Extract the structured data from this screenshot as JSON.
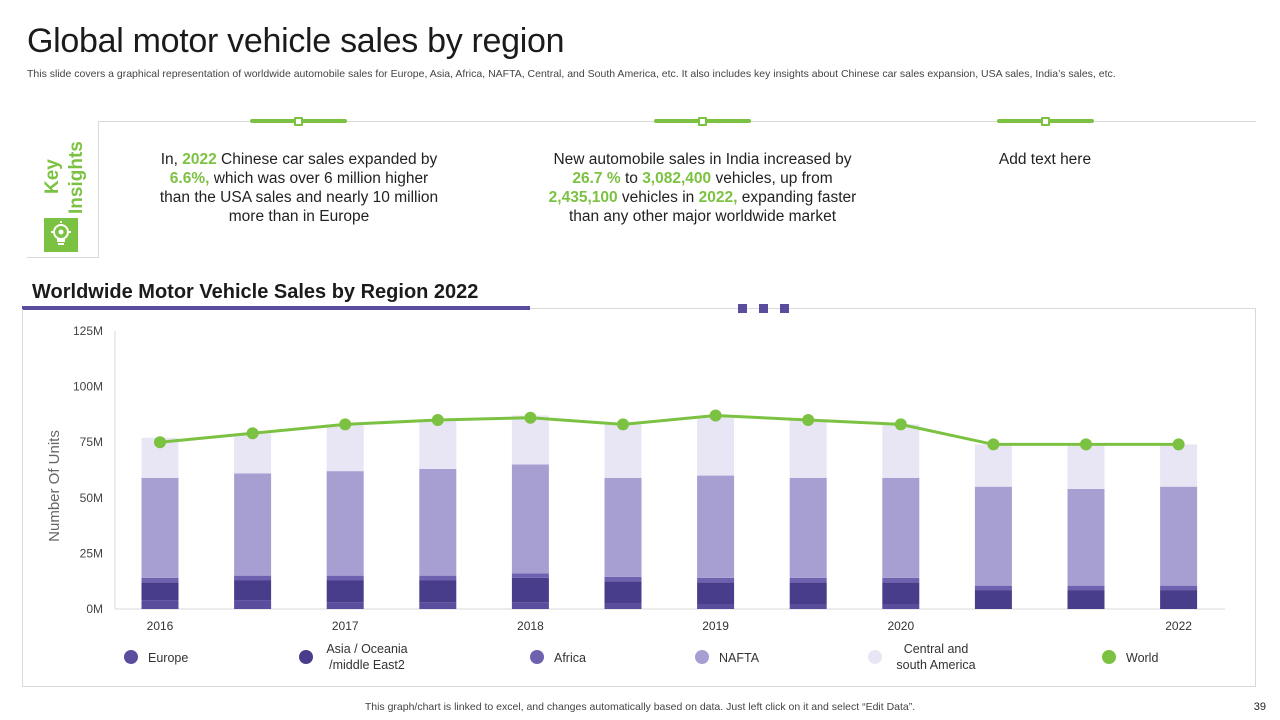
{
  "slide": {
    "title": "Global motor vehicle sales by region",
    "subtitle": "This slide covers a graphical representation of worldwide automobile sales for Europe, Asia, Africa, NAFTA,  Central, and South America, etc. It also includes key insights about Chinese car sales expansion, USA sales, India’s sales, etc.",
    "footnote": "This graph/chart is linked to excel,  and changes automatically based on data. Just left click on it and select “Edit Data”.",
    "page_number": "39"
  },
  "insights": {
    "label_line1": "Key",
    "label_line2": "Insights",
    "icon": "lightbulb-gear-icon",
    "items": [
      {
        "parts": [
          {
            "t": "In, ",
            "g": false
          },
          {
            "t": "2022",
            "g": true
          },
          {
            "t": " Chinese car sales expanded by ",
            "g": false
          },
          {
            "t": "6.6%,",
            "g": true
          },
          {
            "t": " which was over 6 million higher than the USA sales and nearly 10 million more than in Europe",
            "g": false
          }
        ]
      },
      {
        "parts": [
          {
            "t": "New automobile sales in India increased by ",
            "g": false
          },
          {
            "t": "26.7 %",
            "g": true
          },
          {
            "t": " to ",
            "g": false
          },
          {
            "t": "3,082,400",
            "g": true
          },
          {
            "t": " vehicles,  up from ",
            "g": false
          },
          {
            "t": "2,435,100",
            "g": true
          },
          {
            "t": " vehicles in ",
            "g": false
          },
          {
            "t": "2022,",
            "g": true
          },
          {
            "t": " expanding faster than any other major worldwide market",
            "g": false
          }
        ]
      },
      {
        "parts": [
          {
            "t": "Add text here",
            "g": false
          }
        ]
      }
    ]
  },
  "chart_data": {
    "type": "bar",
    "title": "Worldwide Motor Vehicle Sales by Region 2022",
    "ylabel": "Number Of Units",
    "ylim": [
      0,
      125
    ],
    "yticks": [
      0,
      25,
      50,
      75,
      100,
      125
    ],
    "ytick_labels": [
      "0M",
      "25M",
      "50M",
      "75M",
      "100M",
      "125M"
    ],
    "x_tick_labels": [
      "2016",
      "",
      "2017",
      "",
      "2018",
      "",
      "2019",
      "",
      "2020",
      "",
      "",
      "2022"
    ],
    "legend_position": "bottom",
    "colors": {
      "Europe": "#5a4d9e",
      "Asia / Oceania /middle East2": "#483d8b",
      "Africa": "#6e62b0",
      "NAFTA": "#a79fd2",
      "Central and south America": "#e8e6f4",
      "World": "#7cc242"
    },
    "series": [
      {
        "name": "Europe",
        "values": [
          4,
          4,
          3,
          3,
          3,
          2.5,
          2,
          2,
          2,
          0,
          0,
          0
        ]
      },
      {
        "name": "Asia / Oceania /middle East2",
        "values": [
          8,
          9,
          10,
          10,
          11,
          10,
          10,
          10,
          10,
          8.5,
          8.5,
          8.5
        ]
      },
      {
        "name": "Africa",
        "values": [
          2,
          2,
          2,
          2,
          2,
          2,
          2,
          2,
          2,
          2,
          2,
          2
        ]
      },
      {
        "name": "NAFTA",
        "values": [
          45,
          46,
          47,
          48,
          49,
          44.5,
          46,
          45,
          45,
          44.5,
          43.5,
          44.5
        ]
      },
      {
        "name": "Central and south America",
        "values": [
          18,
          18,
          21,
          22,
          22,
          24,
          27,
          26,
          24,
          19,
          20,
          19
        ]
      }
    ],
    "line_series": {
      "name": "World",
      "values": [
        75,
        79,
        83,
        85,
        86,
        83,
        87,
        85,
        83,
        74,
        74,
        74
      ]
    }
  }
}
